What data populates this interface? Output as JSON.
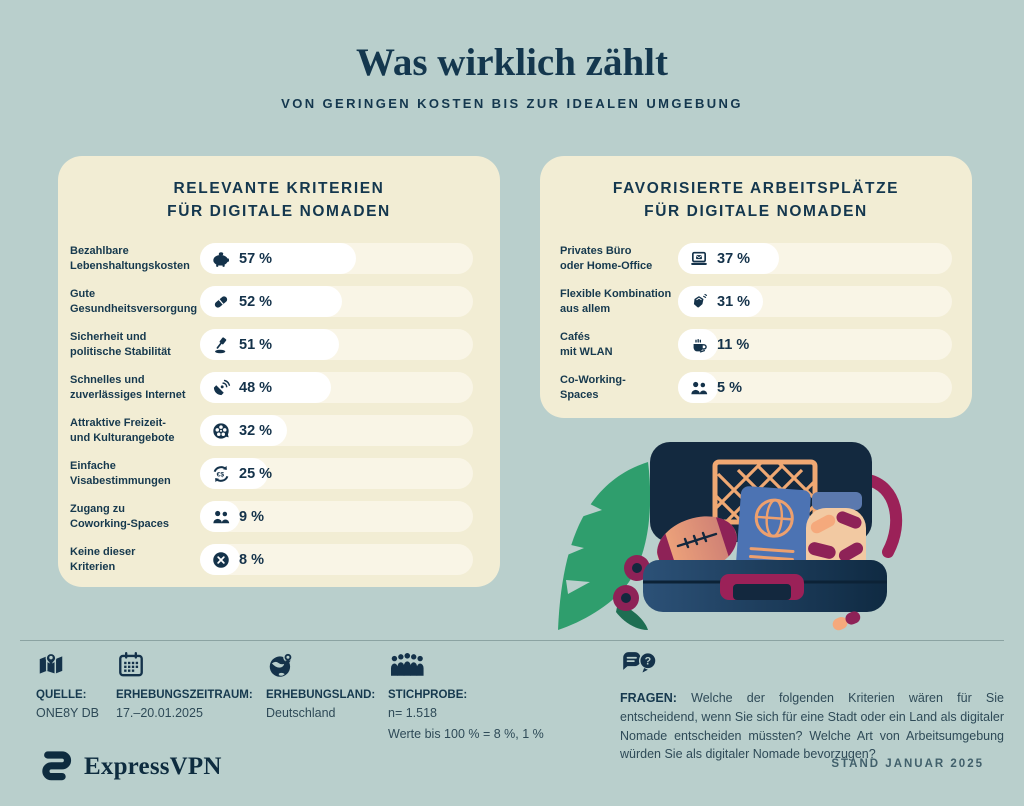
{
  "page": {
    "title": "Was wirklich zählt",
    "subtitle": "VON GERINGEN KOSTEN BIS ZUR IDEALEN UMGEBUNG",
    "stand": "STAND JANUAR 2025",
    "brand": "ExpressVPN",
    "colors": {
      "background": "#b9cfcc",
      "panel": "#f2edd4",
      "bar_track": "#f9f5e6",
      "bar_fill": "#ffffff",
      "navy": "#14324a",
      "leaf_green": "#2f9e6d",
      "maroon": "#8e2257",
      "net_orange": "#efa873",
      "passport_blue": "#4c73b3"
    }
  },
  "left_panel": {
    "title": "RELEVANTE KRITERIEN\nFÜR DIGITALE NOMADEN",
    "items": [
      {
        "label": "Bezahlbare\nLebenshaltungskosten",
        "value": 57,
        "value_label": "57 %",
        "icon": "piggy-bank"
      },
      {
        "label": "Gute\nGesundheitsversorgung",
        "value": 52,
        "value_label": "52 %",
        "icon": "pill"
      },
      {
        "label": "Sicherheit und\npolitische Stabilität",
        "value": 51,
        "value_label": "51 %",
        "icon": "gavel"
      },
      {
        "label": "Schnelles und\nzuverlässiges Internet",
        "value": 48,
        "value_label": "48 %",
        "icon": "satellite-dish"
      },
      {
        "label": "Attraktive Freizeit-\nund Kulturangebote",
        "value": 32,
        "value_label": "32 %",
        "icon": "film-reel"
      },
      {
        "label": "Einfache\nVisabestimmungen",
        "value": 25,
        "value_label": "25 %",
        "icon": "currency-exchange"
      },
      {
        "label": "Zugang zu\nCoworking-Spaces",
        "value": 9,
        "value_label": "9 %",
        "icon": "people"
      },
      {
        "label": "Keine dieser\nKriterien",
        "value": 8,
        "value_label": "8 %",
        "icon": "x-circle"
      }
    ]
  },
  "right_panel": {
    "title": "FAVORISIERTE ARBEITSPLÄTZE\nFÜR DIGITALE NOMADEN",
    "items": [
      {
        "label": "Privates Büro\noder Home-Office",
        "value": 37,
        "value_label": "37 %",
        "icon": "laptop"
      },
      {
        "label": "Flexible Kombination\naus allem",
        "value": 31,
        "value_label": "31 %",
        "icon": "handshake"
      },
      {
        "label": "Cafés\nmit WLAN",
        "value": 11,
        "value_label": "11 %",
        "icon": "coffee-cup"
      },
      {
        "label": "Co-Working-\nSpaces",
        "value": 5,
        "value_label": "5 %",
        "icon": "people"
      }
    ]
  },
  "footer": {
    "source": {
      "label": "QUELLE:",
      "value": "ONE8Y DB"
    },
    "period": {
      "label": "ERHEBUNGSZEITRAUM:",
      "value": "17.–20.01.2025"
    },
    "country": {
      "label": "ERHEBUNGSLAND:",
      "value": "Deutschland"
    },
    "sample": {
      "label": "STICHPROBE:",
      "value_line1": "n= 1.518",
      "value_line2": "Werte bis 100 % = 8 %, 1 %"
    },
    "questions": {
      "label": "FRAGEN:",
      "text": "Welche der folgenden Kriterien wären für Sie entscheidend, wenn Sie sich für eine Stadt oder ein Land als digitaler Nomade entscheiden müssten? Welche Art von Arbeitsumgebung würden Sie als digitaler Nomade bevorzugen?"
    }
  },
  "chart_data": [
    {
      "type": "bar",
      "orientation": "horizontal",
      "title": "RELEVANTE KRITERIEN FÜR DIGITALE NOMADEN",
      "categories": [
        "Bezahlbare Lebenshaltungskosten",
        "Gute Gesundheitsversorgung",
        "Sicherheit und politische Stabilität",
        "Schnelles und zuverlässiges Internet",
        "Attraktive Freizeit- und Kulturangebote",
        "Einfache Visabestimmungen",
        "Zugang zu Coworking-Spaces",
        "Keine dieser Kriterien"
      ],
      "values": [
        57,
        52,
        51,
        48,
        32,
        25,
        9,
        8
      ],
      "unit": "%",
      "xlim": [
        0,
        100
      ],
      "grid": false,
      "legend": false
    },
    {
      "type": "bar",
      "orientation": "horizontal",
      "title": "FAVORISIERTE ARBEITSPLÄTZE FÜR DIGITALE NOMADEN",
      "categories": [
        "Privates Büro oder Home-Office",
        "Flexible Kombination aus allem",
        "Cafés mit WLAN",
        "Co-Working-Spaces"
      ],
      "values": [
        37,
        31,
        11,
        5
      ],
      "unit": "%",
      "xlim": [
        0,
        100
      ],
      "grid": false,
      "legend": false
    }
  ]
}
